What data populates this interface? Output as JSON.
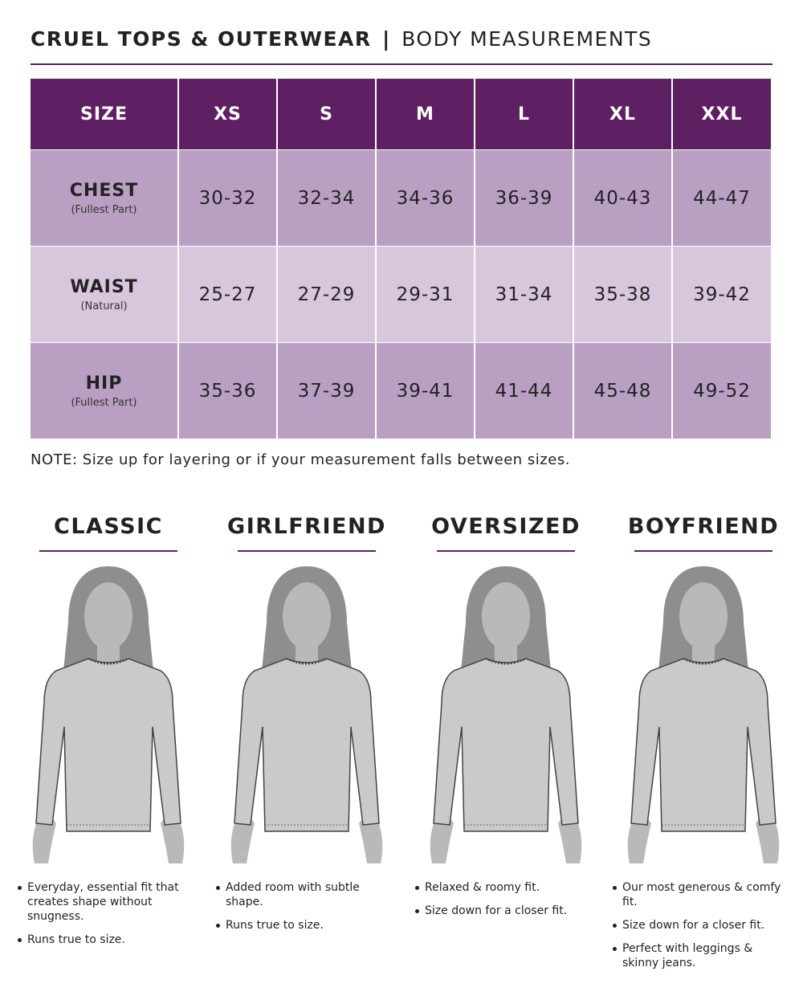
{
  "header": {
    "brand": "CRUEL TOPS & OUTERWEAR",
    "separator": "|",
    "subtitle": "BODY MEASUREMENTS"
  },
  "table": {
    "columns": [
      "SIZE",
      "XS",
      "S",
      "M",
      "L",
      "XL",
      "XXL"
    ],
    "rows": [
      {
        "label": "CHEST",
        "sublabel": "(Fullest Part)",
        "values": [
          "30-32",
          "32-34",
          "34-36",
          "36-39",
          "40-43",
          "44-47"
        ]
      },
      {
        "label": "WAIST",
        "sublabel": "(Natural)",
        "values": [
          "25-27",
          "27-29",
          "29-31",
          "31-34",
          "35-38",
          "39-42"
        ]
      },
      {
        "label": "HIP",
        "sublabel": "(Fullest Part)",
        "values": [
          "35-36",
          "37-39",
          "39-41",
          "41-44",
          "45-48",
          "49-52"
        ]
      }
    ]
  },
  "note": "NOTE: Size up for layering or if your measurement falls between sizes.",
  "fits": [
    {
      "name": "CLASSIC",
      "bullets": [
        "Everyday, essential fit that creates shape without snugness.",
        "Runs true to size."
      ]
    },
    {
      "name": "GIRLFRIEND",
      "bullets": [
        "Added room with subtle shape.",
        "Runs true to size."
      ]
    },
    {
      "name": "OVERSIZED",
      "bullets": [
        "Relaxed & roomy fit.",
        "Size down for a closer fit."
      ]
    },
    {
      "name": "BOYFRIEND",
      "bullets": [
        "Our most generous & comfy fit.",
        "Size down for a closer fit.",
        "Perfect with leggings & skinny jeans."
      ]
    }
  ]
}
